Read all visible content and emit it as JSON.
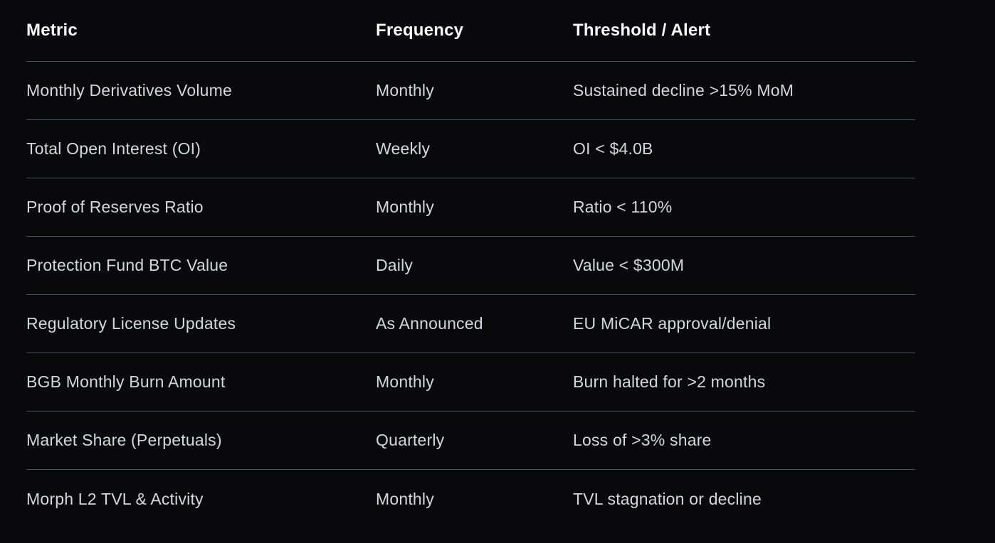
{
  "chart_data": {
    "type": "table",
    "title": "",
    "columns": [
      "Metric",
      "Frequency",
      "Threshold / Alert"
    ],
    "rows": [
      [
        "Monthly Derivatives Volume",
        "Monthly",
        "Sustained decline >15% MoM"
      ],
      [
        "Total Open Interest (OI)",
        "Weekly",
        "OI < $4.0B"
      ],
      [
        "Proof of Reserves Ratio",
        "Monthly",
        "Ratio < 110%"
      ],
      [
        "Protection Fund BTC Value",
        "Daily",
        "Value < $300M"
      ],
      [
        "Regulatory License Updates",
        "As Announced",
        "EU MiCAR approval/denial"
      ],
      [
        "BGB Monthly Burn Amount",
        "Monthly",
        "Burn halted for >2 months"
      ],
      [
        "Market Share (Perpetuals)",
        "Quarterly",
        "Loss of >3% share"
      ],
      [
        "Morph L2 TVL & Activity",
        "Monthly",
        "TVL stagnation or decline"
      ]
    ]
  },
  "colors": {
    "background": "#0a0a0c",
    "divider": "#46505f",
    "header_text": "#fafafa",
    "body_text": "#d3d6dc"
  }
}
